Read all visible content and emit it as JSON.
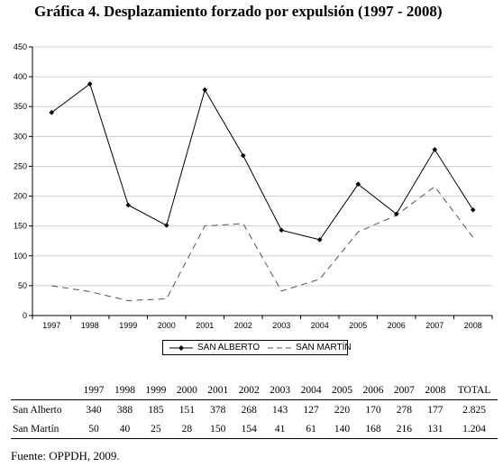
{
  "title": "Gráfica 4. Desplazamiento forzado por expulsión (1997 - 2008)",
  "chart_data": {
    "type": "line",
    "categories": [
      "1997",
      "1998",
      "1999",
      "2000",
      "2001",
      "2002",
      "2003",
      "2004",
      "2005",
      "2006",
      "2007",
      "2008"
    ],
    "series": [
      {
        "name": "SAN ALBERTO",
        "values": [
          340,
          388,
          185,
          151,
          378,
          268,
          143,
          127,
          220,
          170,
          278,
          177
        ],
        "color": "#000000",
        "style": "solid",
        "marker": "diamond"
      },
      {
        "name": "SAN MARTÍN",
        "values": [
          50,
          40,
          25,
          28,
          150,
          154,
          41,
          61,
          140,
          168,
          216,
          131
        ],
        "color": "#555555",
        "style": "dashed",
        "marker": "none"
      }
    ],
    "ylim": [
      0,
      450
    ],
    "yticks": [
      "0",
      "50",
      "100",
      "150",
      "200",
      "250",
      "300",
      "350",
      "400",
      "450"
    ],
    "grid": true,
    "legend": "bottom"
  },
  "table": {
    "headers": [
      "1997",
      "1998",
      "1999",
      "2000",
      "2001",
      "2002",
      "2003",
      "2004",
      "2005",
      "2006",
      "2007",
      "2008",
      "TOTAL"
    ],
    "rows": [
      {
        "label": "San Alberto",
        "values": [
          "340",
          "388",
          "185",
          "151",
          "378",
          "268",
          "143",
          "127",
          "220",
          "170",
          "278",
          "177",
          "2.825"
        ]
      },
      {
        "label": "San Martín",
        "values": [
          "50",
          "40",
          "25",
          "28",
          "150",
          "154",
          "41",
          "61",
          "140",
          "168",
          "216",
          "131",
          "1.204"
        ]
      }
    ]
  },
  "source": "Fuente: OPPDH, 2009."
}
